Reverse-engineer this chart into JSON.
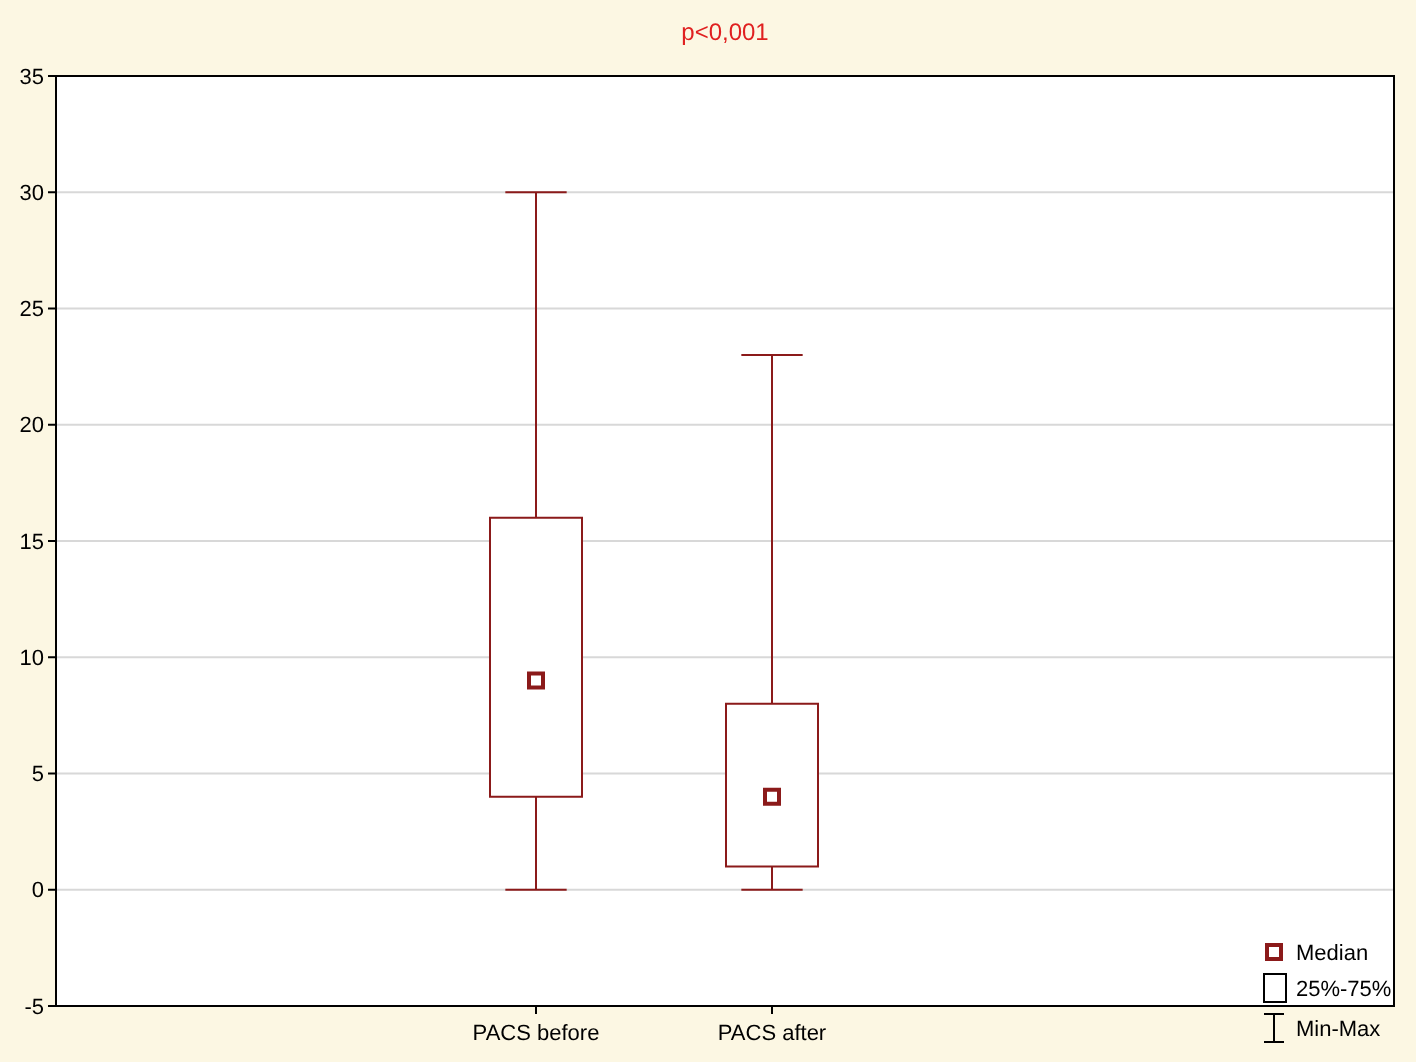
{
  "chart_data": {
    "type": "box",
    "title": "p<0,001",
    "categories": [
      "PACS before",
      "PACS after"
    ],
    "boxes": [
      {
        "low": 0,
        "q1": 4,
        "median": 9,
        "q3": 16,
        "high": 30
      },
      {
        "low": 0,
        "q1": 1,
        "median": 4,
        "q3": 8,
        "high": 23
      }
    ],
    "color": "#8b1a1a",
    "ylim": [
      -5,
      35
    ],
    "yticks": [
      -5,
      0,
      5,
      10,
      15,
      20,
      25,
      30,
      35
    ],
    "grid": "y",
    "marker": "square",
    "annotations": [
      "Median",
      "25%-75%",
      "Min-Max"
    ]
  }
}
